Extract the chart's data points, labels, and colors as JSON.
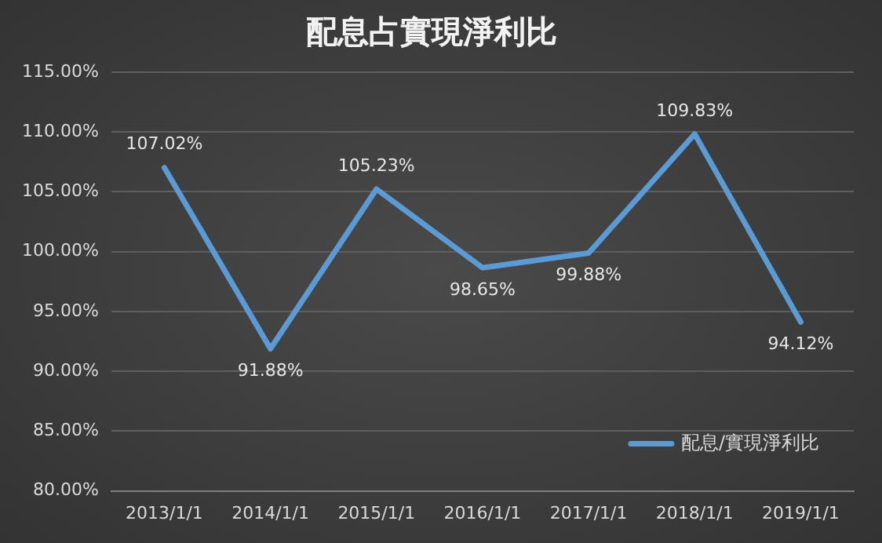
{
  "chart_data": {
    "type": "line",
    "title": "配息占實現淨利比",
    "categories": [
      "2013/1/1",
      "2014/1/1",
      "2015/1/1",
      "2016/1/1",
      "2017/1/1",
      "2018/1/1",
      "2019/1/1"
    ],
    "series": [
      {
        "name": "配息/實現淨利比",
        "color": "#5b9bd5",
        "values": [
          107.02,
          91.88,
          105.23,
          98.65,
          99.88,
          109.83,
          94.12
        ],
        "value_labels": [
          "107.02%",
          "91.88%",
          "105.23%",
          "98.65%",
          "99.88%",
          "109.83%",
          "94.12%"
        ]
      }
    ],
    "ylim": [
      80,
      115
    ],
    "yticks": [
      {
        "value": 80,
        "label": "80.00%"
      },
      {
        "value": 85,
        "label": "85.00%"
      },
      {
        "value": 90,
        "label": "90.00%"
      },
      {
        "value": 95,
        "label": "95.00%"
      },
      {
        "value": 100,
        "label": "100.00%"
      },
      {
        "value": 105,
        "label": "105.00%"
      },
      {
        "value": 110,
        "label": "110.00%"
      },
      {
        "value": 115,
        "label": "115.00%"
      }
    ],
    "grid": "y",
    "legend": "bottom right",
    "marker": "none",
    "line_style": "solid"
  }
}
